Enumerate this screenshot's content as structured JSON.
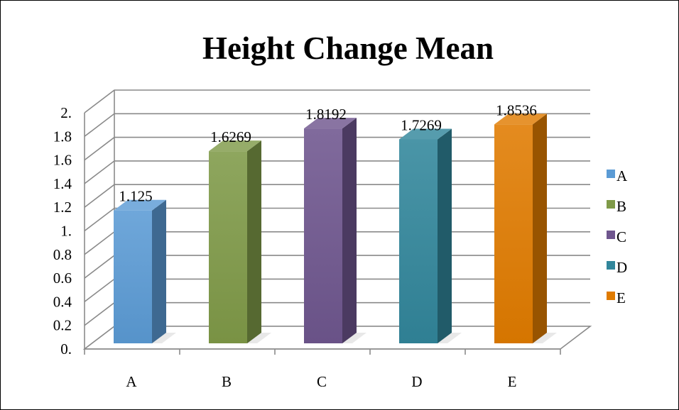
{
  "chart_data": {
    "type": "bar",
    "title": "Height Change Mean",
    "categories": [
      "A",
      "B",
      "C",
      "D",
      "E"
    ],
    "values": [
      1.125,
      1.6269,
      1.8192,
      1.7269,
      1.8536
    ],
    "data_labels": [
      "1.125",
      "1.6269",
      "1.8192",
      "1.7269",
      "1.8536"
    ],
    "ylim": [
      0,
      2
    ],
    "y_ticks": [
      0,
      0.2,
      0.4,
      0.6,
      0.8,
      1,
      1.2,
      1.4,
      1.6,
      1.8,
      2
    ],
    "y_tick_labels": [
      "0.",
      "0.2",
      "0.4",
      "0.6",
      "0.8",
      "1.",
      "1.2",
      "1.4",
      "1.6",
      "1.8",
      "2."
    ],
    "grid": true,
    "style": "3d-column",
    "legend": {
      "position": "right",
      "entries": [
        "A",
        "B",
        "C",
        "D",
        "E"
      ]
    },
    "colors": [
      "#5b9bd5",
      "#7f9a48",
      "#6f568e",
      "#31869b",
      "#e07b00"
    ]
  }
}
